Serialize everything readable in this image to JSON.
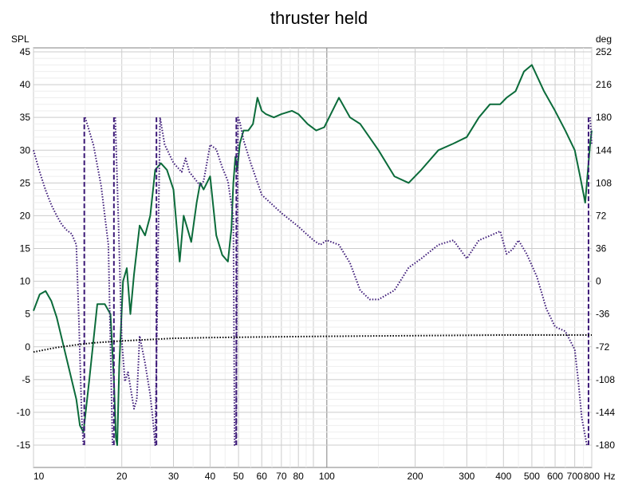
{
  "chart_data": {
    "type": "line",
    "title": "thruster held",
    "x_scale": "log",
    "x_unit": "Hz",
    "xlim": [
      10,
      800
    ],
    "x_ticks": [
      10,
      20,
      30,
      40,
      50,
      60,
      70,
      80,
      100,
      200,
      300,
      400,
      500,
      600,
      700,
      800
    ],
    "y_left": {
      "label": "SPL",
      "ylim": [
        -15,
        45
      ],
      "ticks": [
        45,
        40,
        35,
        30,
        25,
        20,
        15,
        10,
        5,
        0,
        -5,
        -10,
        -15
      ]
    },
    "y_right": {
      "label": "deg",
      "ylim": [
        -180,
        252
      ],
      "ticks": [
        252,
        216,
        180,
        144,
        108,
        72,
        36,
        0,
        -36,
        -72,
        -108,
        -144,
        -180
      ]
    },
    "grid": true,
    "colors": {
      "spl": "#0b6b3a",
      "phase": "#3d1a78",
      "reference": "#000000",
      "grid": "#cccccc"
    },
    "series": [
      {
        "axis": "left",
        "style": "solid",
        "x": [
          10,
          10.5,
          11,
          11.5,
          12,
          13,
          14,
          14.4,
          14.8,
          15.5,
          16.5,
          17.5,
          18.3,
          18.8,
          19.1,
          19.3,
          19.6,
          20.2,
          20.8,
          21.4,
          22,
          23,
          24,
          25,
          26,
          27.2,
          28.5,
          30,
          31.5,
          32.5,
          33.5,
          34.5,
          36,
          37,
          38,
          40,
          42,
          44,
          46,
          47.3,
          48,
          48.8,
          49.5,
          50.5,
          52,
          54,
          56,
          58,
          60,
          62,
          66,
          70,
          76,
          80,
          86,
          92,
          98,
          110,
          120,
          130,
          150,
          170,
          190,
          210,
          240,
          270,
          300,
          330,
          360,
          390,
          410,
          440,
          470,
          500,
          550,
          600,
          650,
          700,
          730,
          760,
          790,
          800
        ],
        "y": [
          5.5,
          8,
          8.5,
          7,
          4.5,
          -2,
          -8,
          -12,
          -13,
          -5,
          6.5,
          6.5,
          5,
          -5,
          -14,
          -15,
          -3,
          10,
          12,
          5,
          11,
          18.5,
          17,
          20,
          27,
          28,
          27,
          24,
          13,
          20,
          18,
          16,
          22,
          25,
          24,
          26,
          17,
          14,
          13,
          18,
          25,
          29,
          27,
          31,
          33,
          33,
          34,
          38,
          36,
          35.5,
          35,
          35.5,
          36,
          35.5,
          34,
          33,
          33.5,
          38,
          35,
          34,
          30,
          26,
          25,
          27,
          30,
          31,
          32,
          35,
          37,
          37,
          38,
          39,
          42,
          43,
          39,
          36,
          33,
          30,
          26,
          22,
          31,
          33
        ]
      },
      {
        "axis": "right",
        "style": "dotted",
        "x": [
          10,
          10.5,
          11,
          11.5,
          12,
          12.5,
          13,
          13.5,
          14,
          14.3,
          14.6,
          14.8,
          15,
          15.5,
          16,
          17,
          18,
          18.6,
          19,
          19.5,
          20,
          20.5,
          21,
          22,
          22.5,
          23,
          24,
          25,
          25.5,
          26,
          27,
          28,
          30,
          32,
          33,
          34,
          36,
          37,
          38,
          40,
          42,
          44,
          46,
          47,
          48,
          48.5,
          49,
          49.8,
          50.5,
          52,
          55,
          60,
          70,
          80,
          90,
          95,
          100,
          110,
          120,
          130,
          140,
          150,
          170,
          190,
          210,
          240,
          270,
          300,
          330,
          360,
          390,
          410,
          430,
          450,
          480,
          520,
          560,
          600,
          650,
          700,
          720,
          740,
          770,
          790,
          800
        ],
        "y": [
          144,
          120,
          100,
          84,
          72,
          62,
          56,
          52,
          40,
          -48,
          -150,
          -180,
          180,
          165,
          150,
          105,
          40,
          -180,
          180,
          60,
          -65,
          -110,
          -100,
          -140,
          -130,
          -60,
          -90,
          -125,
          -150,
          -180,
          180,
          150,
          130,
          120,
          135,
          120,
          110,
          105,
          110,
          150,
          145,
          125,
          110,
          90,
          70,
          -180,
          -180,
          180,
          175,
          155,
          130,
          95,
          75,
          60,
          45,
          40,
          45,
          40,
          20,
          -10,
          -20,
          -20,
          -10,
          15,
          25,
          40,
          45,
          25,
          45,
          50,
          55,
          30,
          35,
          45,
          30,
          5,
          -30,
          -50,
          -55,
          -75,
          -110,
          -150,
          -180,
          180,
          150
        ],
        "breaks": [
          [
            14.8,
            15
          ],
          [
            18.6,
            19
          ],
          [
            25.5,
            27
          ],
          [
            48.5,
            49.8
          ],
          [
            770,
            790
          ]
        ]
      },
      {
        "axis": "left",
        "style": "dotted",
        "x": [
          10,
          12,
          14,
          16,
          20,
          30,
          40,
          60,
          100,
          200,
          400,
          800
        ],
        "y": [
          -0.8,
          -0.1,
          0.3,
          0.6,
          0.9,
          1.3,
          1.4,
          1.5,
          1.6,
          1.7,
          1.8,
          1.8
        ]
      }
    ]
  }
}
